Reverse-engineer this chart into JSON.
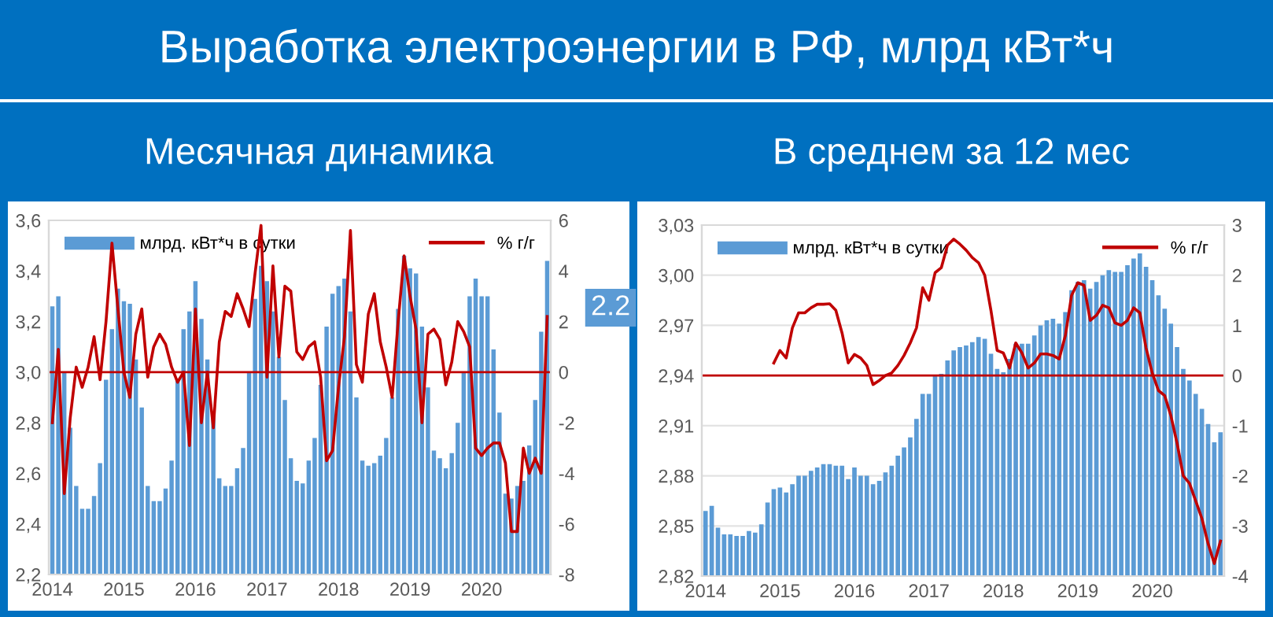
{
  "chart_data": [
    {
      "type": "bar",
      "title": "Выработка электроэнергии в РФ, млрд кВт*ч",
      "subtitle": "Месячная динамика",
      "categories": [
        "2014",
        null,
        null,
        null,
        null,
        null,
        null,
        null,
        null,
        null,
        null,
        null,
        "2015",
        null,
        null,
        null,
        null,
        null,
        null,
        null,
        null,
        null,
        null,
        null,
        "2016",
        null,
        null,
        null,
        null,
        null,
        null,
        null,
        null,
        null,
        null,
        null,
        "2017",
        null,
        null,
        null,
        null,
        null,
        null,
        null,
        null,
        null,
        null,
        null,
        "2018",
        null,
        null,
        null,
        null,
        null,
        null,
        null,
        null,
        null,
        null,
        null,
        "2019",
        null,
        null,
        null,
        null,
        null,
        null,
        null,
        null,
        null,
        null,
        null,
        "2020",
        null,
        null,
        null,
        null,
        null,
        null,
        null,
        null,
        null,
        null,
        null
      ],
      "series": [
        {
          "name": "млрд. кВт*ч в сутки",
          "color": "#5b9bd5",
          "values": [
            3.26,
            3.3,
            3.0,
            2.78,
            2.55,
            2.46,
            2.46,
            2.51,
            2.64,
            2.97,
            3.17,
            3.33,
            3.28,
            3.27,
            3.05,
            2.86,
            2.55,
            2.49,
            2.49,
            2.54,
            2.65,
            2.97,
            3.17,
            3.24,
            3.36,
            3.21,
            3.05,
            2.83,
            2.58,
            2.55,
            2.55,
            2.62,
            2.7,
            3.0,
            3.29,
            3.42,
            3.36,
            3.24,
            3.06,
            2.89,
            2.66,
            2.57,
            2.56,
            2.65,
            2.74,
            2.95,
            3.18,
            3.31,
            3.34,
            3.37,
            3.24,
            2.9,
            2.65,
            2.63,
            2.64,
            2.67,
            2.74,
            2.9,
            3.25,
            3.46,
            3.41,
            3.39,
            3.18,
            2.94,
            2.69,
            2.66,
            2.62,
            2.68,
            2.8,
            3.0,
            3.3,
            3.37,
            3.3,
            3.3,
            3.09,
            2.84,
            2.52,
            2.5,
            2.55,
            2.57,
            2.71,
            2.89,
            3.16,
            3.44
          ]
        },
        {
          "name": "% г/г",
          "type": "line",
          "axis": "y2",
          "color": "#c00000",
          "values": [
            -2.0,
            0.9,
            -4.8,
            -1.8,
            0.2,
            -0.6,
            0.2,
            1.4,
            -0.3,
            2.0,
            5.1,
            2.5,
            0.0,
            -1.0,
            1.5,
            2.5,
            -0.2,
            1.0,
            1.5,
            1.1,
            0.2,
            -0.4,
            0.0,
            -2.9,
            2.5,
            -2.0,
            0.0,
            -2.2,
            1.2,
            2.4,
            2.2,
            3.1,
            2.5,
            1.8,
            3.9,
            5.8,
            -0.2,
            4.2,
            0.6,
            3.4,
            3.2,
            0.8,
            0.5,
            1.0,
            1.2,
            -0.2,
            -3.5,
            -3.1,
            -0.6,
            1.4,
            5.6,
            0.3,
            -0.4,
            2.3,
            3.1,
            1.2,
            0.2,
            -1.0,
            2.0,
            4.6,
            3.0,
            1.7,
            -2.0,
            1.5,
            1.7,
            1.3,
            -0.5,
            0.4,
            2.0,
            1.6,
            1.0,
            -3.0,
            -3.3,
            -3.0,
            -2.8,
            -2.8,
            -3.6,
            -6.3,
            -6.3,
            -3.0,
            -4.0,
            -3.4,
            -4.0,
            2.2
          ],
          "value_labels": [
            null,
            null,
            null,
            null,
            null,
            null,
            null,
            null,
            null,
            null,
            null,
            null,
            null,
            null,
            null,
            null,
            null,
            null,
            null,
            null,
            null,
            null,
            null,
            null,
            null,
            null,
            null,
            null,
            null,
            null,
            null,
            null,
            null,
            null,
            null,
            null,
            null,
            null,
            null,
            null,
            null,
            null,
            null,
            null,
            null,
            null,
            null,
            null,
            null,
            null,
            null,
            null,
            null,
            null,
            null,
            null,
            null,
            null,
            null,
            null,
            null,
            null,
            null,
            null,
            null,
            null,
            null,
            null,
            null,
            null,
            null,
            null,
            null,
            null,
            null,
            null,
            null,
            null,
            null,
            null,
            null,
            null,
            null,
            "2.2"
          ]
        }
      ],
      "ylim": [
        2.2,
        3.6
      ],
      "yticks": [
        {
          "value": 2.2,
          "label": "2,2"
        },
        {
          "value": 2.4,
          "label": "2,4"
        },
        {
          "value": 2.6,
          "label": "2,6"
        },
        {
          "value": 2.8,
          "label": "2,8"
        },
        {
          "value": 3.0,
          "label": "3,0"
        },
        {
          "value": 3.2,
          "label": "3,2"
        },
        {
          "value": 3.4,
          "label": "3,4"
        },
        {
          "value": 3.6,
          "label": "3,6"
        }
      ],
      "y2lim": [
        -8,
        6
      ],
      "y2ticks": [
        -8,
        -6,
        -4,
        -2,
        0,
        2,
        4,
        6
      ],
      "ref_lines": [
        {
          "axis": "y2",
          "value": 0,
          "color": "#c00000"
        }
      ],
      "legend": "top"
    },
    {
      "type": "bar",
      "subtitle": "В среднем за 12 мес",
      "categories": [
        "2014",
        null,
        null,
        null,
        null,
        null,
        null,
        null,
        null,
        null,
        null,
        null,
        "2015",
        null,
        null,
        null,
        null,
        null,
        null,
        null,
        null,
        null,
        null,
        null,
        "2016",
        null,
        null,
        null,
        null,
        null,
        null,
        null,
        null,
        null,
        null,
        null,
        "2017",
        null,
        null,
        null,
        null,
        null,
        null,
        null,
        null,
        null,
        null,
        null,
        "2018",
        null,
        null,
        null,
        null,
        null,
        null,
        null,
        null,
        null,
        null,
        null,
        "2019",
        null,
        null,
        null,
        null,
        null,
        null,
        null,
        null,
        null,
        null,
        null,
        "2020",
        null,
        null,
        null,
        null,
        null,
        null,
        null,
        null,
        null,
        null,
        null
      ],
      "series": [
        {
          "name": "млрд. кВт*ч в сутки",
          "color": "#5b9bd5",
          "values": [
            2.859,
            2.862,
            2.849,
            2.845,
            2.845,
            2.844,
            2.844,
            2.847,
            2.846,
            2.851,
            2.864,
            2.872,
            2.873,
            2.87,
            2.875,
            2.88,
            2.88,
            2.883,
            2.885,
            2.887,
            2.887,
            2.886,
            2.886,
            2.878,
            2.885,
            2.88,
            2.88,
            2.875,
            2.877,
            2.882,
            2.886,
            2.892,
            2.897,
            2.903,
            2.914,
            2.929,
            2.929,
            2.94,
            2.941,
            2.949,
            2.955,
            2.957,
            2.958,
            2.96,
            2.963,
            2.962,
            2.953,
            2.944,
            2.942,
            2.95,
            2.959,
            2.959,
            2.959,
            2.964,
            2.97,
            2.973,
            2.974,
            2.971,
            2.978,
            2.991,
            2.996,
            2.997,
            2.992,
            2.996,
            3.0,
            3.003,
            3.002,
            3.002,
            3.006,
            3.01,
            3.013,
            3.005,
            2.997,
            2.988,
            2.98,
            2.971,
            2.957,
            2.944,
            2.937,
            2.929,
            2.92,
            2.911,
            2.9,
            2.906
          ]
        },
        {
          "name": "% г/г",
          "type": "line",
          "axis": "y2",
          "color": "#c00000",
          "values": [
            null,
            null,
            null,
            null,
            null,
            null,
            null,
            null,
            null,
            null,
            null,
            0.25,
            0.5,
            0.35,
            0.95,
            1.25,
            1.25,
            1.35,
            1.42,
            1.42,
            1.43,
            1.3,
            0.85,
            0.25,
            0.42,
            0.35,
            0.2,
            -0.18,
            -0.1,
            0.0,
            0.05,
            0.2,
            0.4,
            0.65,
            0.95,
            1.75,
            1.5,
            2.05,
            2.15,
            2.6,
            2.72,
            2.62,
            2.5,
            2.35,
            2.25,
            2.0,
            1.3,
            0.5,
            0.45,
            0.15,
            0.65,
            0.45,
            0.15,
            0.25,
            0.43,
            0.43,
            0.4,
            0.33,
            0.8,
            1.6,
            1.85,
            1.8,
            1.1,
            1.2,
            1.4,
            1.35,
            1.05,
            1.0,
            1.1,
            1.35,
            1.25,
            0.55,
            0.05,
            -0.3,
            -0.4,
            -0.8,
            -1.35,
            -2.0,
            -2.15,
            -2.5,
            -2.85,
            -3.35,
            -3.75,
            -3.3
          ]
        }
      ],
      "ylim": [
        2.82,
        3.03
      ],
      "yticks": [
        {
          "value": 2.82,
          "label": "2,82"
        },
        {
          "value": 2.85,
          "label": "2,85"
        },
        {
          "value": 2.88,
          "label": "2,88"
        },
        {
          "value": 2.91,
          "label": "2,91"
        },
        {
          "value": 2.94,
          "label": "2,94"
        },
        {
          "value": 2.97,
          "label": "2,97"
        },
        {
          "value": 3.0,
          "label": "3,00"
        },
        {
          "value": 3.03,
          "label": "3,03"
        }
      ],
      "y2lim": [
        -4,
        3
      ],
      "y2ticks": [
        -4,
        -3,
        -2,
        -1,
        0,
        1,
        2,
        3
      ],
      "ref_lines": [
        {
          "axis": "y2",
          "value": 0,
          "color": "#c00000"
        }
      ],
      "grid": "y",
      "legend": "top"
    }
  ]
}
